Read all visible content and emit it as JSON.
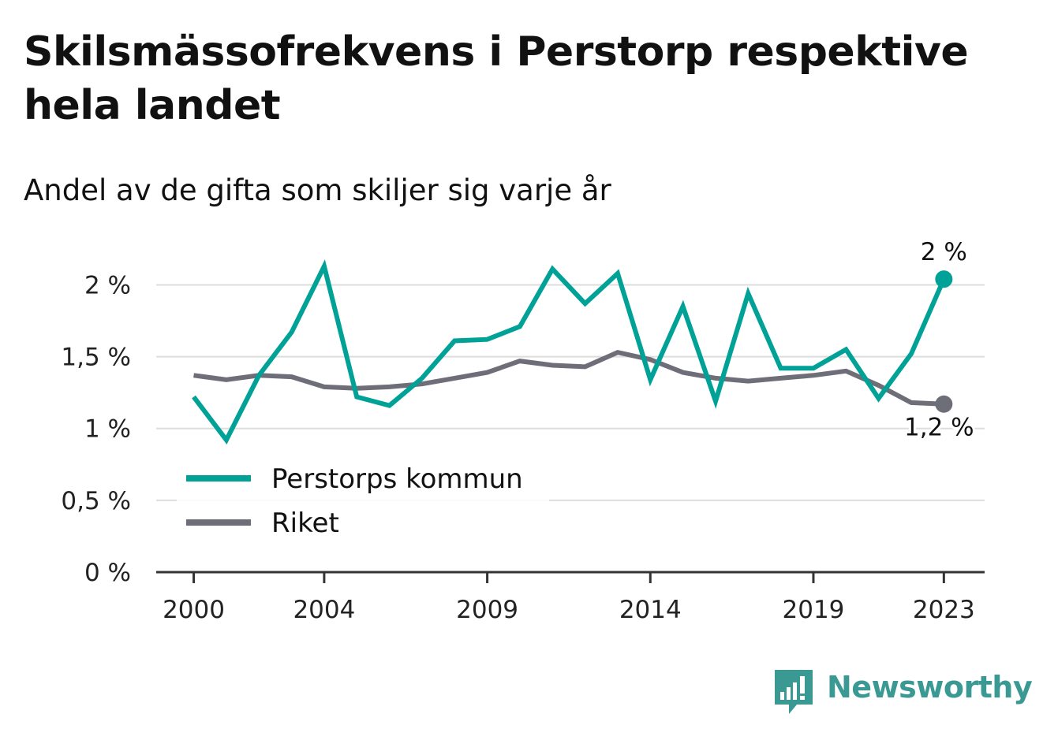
{
  "header": {
    "title": "Skilsmässofrekvens i Perstorp respektive hela landet",
    "subtitle": "Andel av de gifta som skiljer sig varje år"
  },
  "brand": {
    "name": "Newsworthy",
    "color": "#3a9a93",
    "icon": "newsworthy-logo-icon"
  },
  "colors": {
    "perstorp": "#00a196",
    "riket": "#6e6e78",
    "grid": "#dddddd",
    "axis": "#333333",
    "text": "#111111"
  },
  "chart_data": {
    "type": "line",
    "title": "Skilsmässofrekvens i Perstorp respektive hela landet",
    "subtitle": "Andel av de gifta som skiljer sig varje år",
    "xlabel": "",
    "ylabel": "",
    "x": [
      2000,
      2001,
      2002,
      2003,
      2004,
      2005,
      2006,
      2007,
      2008,
      2009,
      2010,
      2011,
      2012,
      2013,
      2014,
      2015,
      2016,
      2017,
      2018,
      2019,
      2020,
      2021,
      2022,
      2023
    ],
    "x_ticks": [
      "2000",
      "2004",
      "2009",
      "2014",
      "2019",
      "2023"
    ],
    "x_tick_values": [
      2000,
      2004,
      2009,
      2014,
      2019,
      2023
    ],
    "ylim": [
      0,
      2.2
    ],
    "y_ticks": [
      0,
      0.5,
      1,
      1.5,
      2
    ],
    "y_tick_labels": [
      "0 %",
      "0,5 %",
      "1 %",
      "1,5 %",
      "2 %"
    ],
    "grid": true,
    "legend_position": "bottom-left",
    "series": [
      {
        "name": "Perstorps kommun",
        "color": "#00a196",
        "values": [
          1.22,
          0.92,
          1.37,
          1.67,
          2.13,
          1.22,
          1.16,
          1.35,
          1.61,
          1.62,
          1.71,
          2.11,
          1.87,
          2.08,
          1.34,
          1.85,
          1.19,
          1.94,
          1.42,
          1.42,
          1.55,
          1.21,
          1.52,
          2.04
        ],
        "end_label": "2 %"
      },
      {
        "name": "Riket",
        "color": "#6e6e78",
        "values": [
          1.37,
          1.34,
          1.37,
          1.36,
          1.29,
          1.28,
          1.29,
          1.31,
          1.35,
          1.39,
          1.47,
          1.44,
          1.43,
          1.53,
          1.48,
          1.39,
          1.35,
          1.33,
          1.35,
          1.37,
          1.4,
          1.3,
          1.18,
          1.17
        ],
        "end_label": "1,2 %"
      }
    ]
  }
}
